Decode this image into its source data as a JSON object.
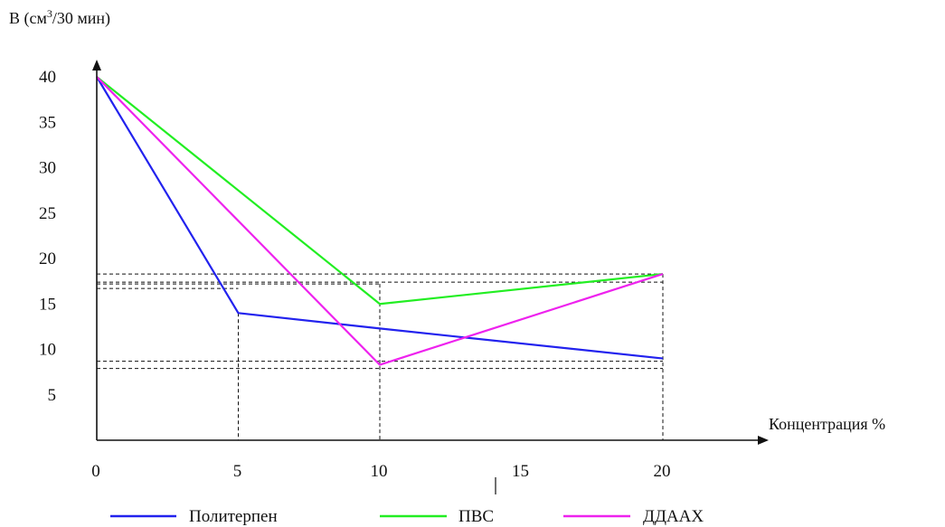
{
  "chart_data": {
    "type": "line",
    "ylabel_prefix": "B (см",
    "ylabel_sup": "3",
    "ylabel_suffix": "/30 мин)",
    "xlabel": "Концентрация %",
    "xlim": [
      0,
      24
    ],
    "ylim": [
      0,
      43
    ],
    "x_ticks": [
      "0",
      "5",
      "10",
      "15",
      "20"
    ],
    "x_tick_values": [
      0,
      5,
      10,
      15,
      20
    ],
    "y_ticks": [
      "5",
      "10",
      "15",
      "20",
      "25",
      "30",
      "35",
      "40"
    ],
    "y_tick_values": [
      5,
      10,
      15,
      20,
      25,
      30,
      35,
      40
    ],
    "grid": false,
    "legend_position": "bottom",
    "series": [
      {
        "name": "Политерпен",
        "color": "#2222ee",
        "x": [
          0,
          5,
          10,
          20
        ],
        "y": [
          40,
          14,
          12.3,
          9
        ]
      },
      {
        "name": "ПВС",
        "color": "#22ee22",
        "x": [
          0,
          10,
          20
        ],
        "y": [
          40,
          15,
          18.3
        ]
      },
      {
        "name": "ДДААХ",
        "color": "#ee22ee",
        "x": [
          0,
          10,
          20
        ],
        "y": [
          40,
          8.3,
          18.3
        ]
      }
    ],
    "reference_lines": {
      "color": "#111111",
      "verticals": [
        {
          "x": 5,
          "y_top": 14
        },
        {
          "x": 10,
          "y_top": 17.2
        },
        {
          "x": 20,
          "y_top": 18.3
        }
      ],
      "horizontals": [
        {
          "y": 18.3,
          "x_end": 20
        },
        {
          "y": 17.4,
          "x_end": 20
        },
        {
          "y": 17.2,
          "x_end": 10
        },
        {
          "y": 16.7,
          "x_end": 5
        },
        {
          "y": 8.7,
          "x_end": 20
        },
        {
          "y": 7.9,
          "x_end": 20
        }
      ]
    }
  }
}
